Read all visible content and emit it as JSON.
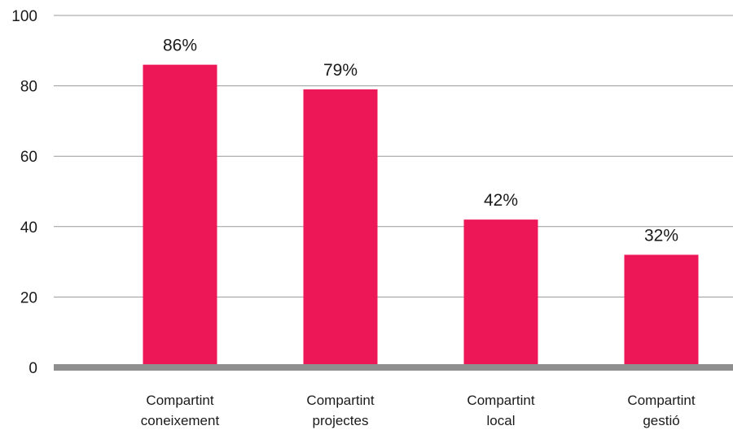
{
  "chart_data": {
    "type": "bar",
    "title": "",
    "xlabel": "",
    "ylabel": "",
    "ylim": [
      0,
      100
    ],
    "yticks": [
      0,
      20,
      40,
      60,
      80,
      100
    ],
    "grid": true,
    "categories": [
      [
        "Compartint",
        "coneixement"
      ],
      [
        "Compartint",
        "projectes"
      ],
      [
        "Compartint",
        "local"
      ],
      [
        "Compartint",
        "gestió"
      ]
    ],
    "values": [
      86,
      79,
      42,
      32
    ],
    "data_labels": [
      "86%",
      "79%",
      "42%",
      "32%"
    ],
    "colors": {
      "bar": "#ed1656",
      "grid": "#9a9a9a",
      "baseline": "#8f8f8f"
    }
  }
}
